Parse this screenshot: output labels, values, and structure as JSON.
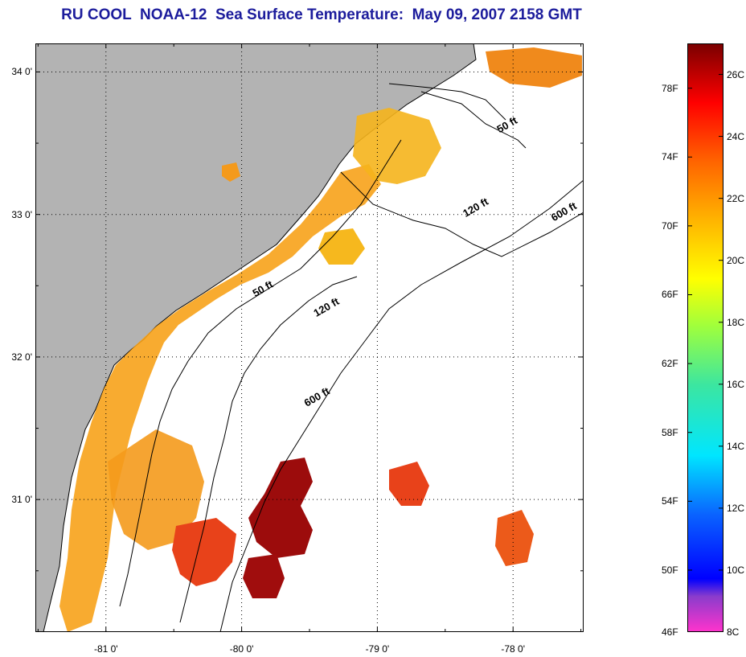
{
  "title": "RU COOL  NOAA-12  Sea Surface Temperature:  May 09, 2007 2158 GMT",
  "map": {
    "lat_ticks": [
      {
        "value": 34,
        "label": "34 0'"
      },
      {
        "value": 33,
        "label": "33 0'"
      },
      {
        "value": 32,
        "label": "32 0'"
      },
      {
        "value": 31,
        "label": "31 0'"
      }
    ],
    "lon_ticks": [
      {
        "value": -81,
        "label": "-81 0'"
      },
      {
        "value": -80,
        "label": "-80 0'"
      },
      {
        "value": -79,
        "label": "-79 0'"
      },
      {
        "value": -78,
        "label": "-78 0'"
      }
    ],
    "extent": {
      "lon_min": -81.52,
      "lon_max": -77.48,
      "lat_min": 30.07,
      "lat_max": 34.2
    },
    "contour_labels": [
      {
        "text": "50 ft",
        "lon": -78.1,
        "lat": 33.57
      },
      {
        "text": "120 ft",
        "lon": -78.35,
        "lat": 32.98
      },
      {
        "text": "600 ft",
        "lon": -77.7,
        "lat": 32.95
      },
      {
        "text": "50 ft",
        "lon": -79.9,
        "lat": 32.42
      },
      {
        "text": "120 ft",
        "lon": -79.45,
        "lat": 32.28
      },
      {
        "text": "600 ft",
        "lon": -79.52,
        "lat": 31.65
      }
    ],
    "colors": {
      "land": "#b3b3b3",
      "ocean": "#ffffff",
      "coast": "#000000"
    }
  },
  "colorbar": {
    "range_c": [
      8,
      27
    ],
    "fahrenheit_labels": [
      "78F",
      "74F",
      "70F",
      "66F",
      "62F",
      "58F",
      "54F",
      "50F",
      "46F"
    ],
    "celsius_labels": [
      "26C",
      "24C",
      "22C",
      "20C",
      "18C",
      "16C",
      "14C",
      "12C",
      "10C",
      "8C"
    ]
  }
}
